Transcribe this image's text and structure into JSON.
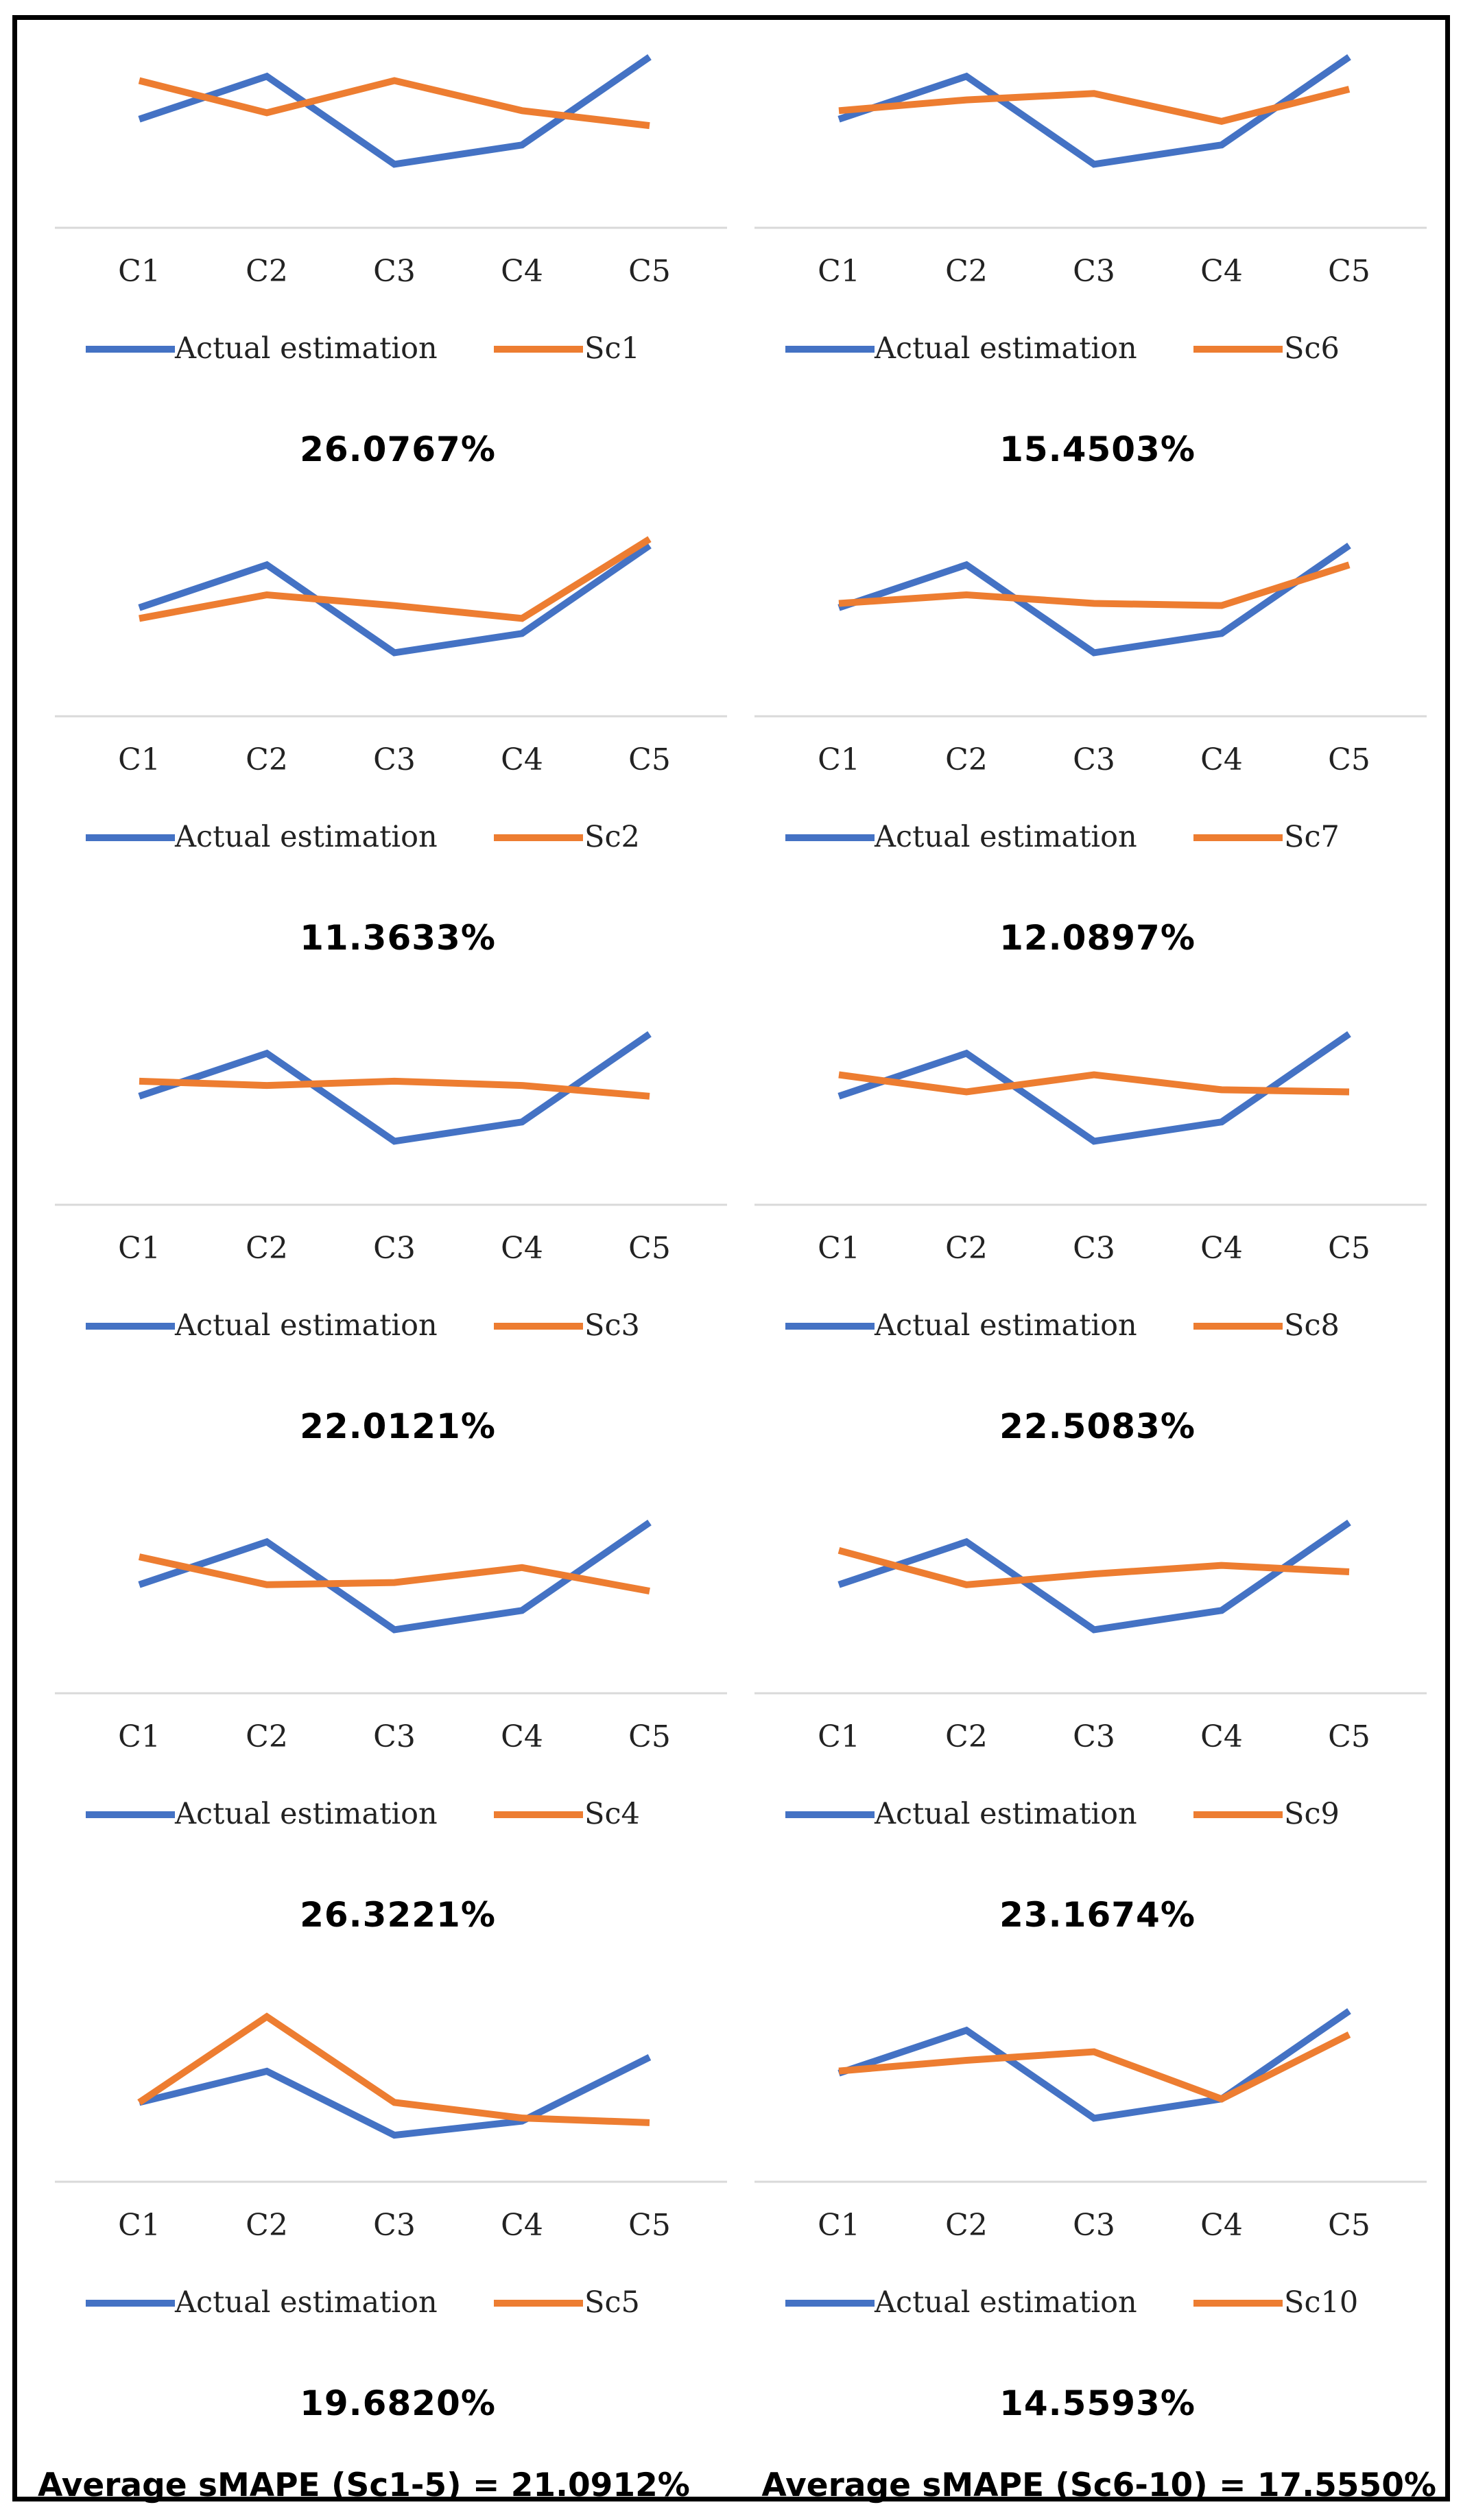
{
  "colors": {
    "actual": "#4472C4",
    "scenario": "#ED7D31",
    "gridline": "#D9D9D9",
    "frame": "#000000"
  },
  "legend_actual": "Actual estimation",
  "chart_data": [
    {
      "type": "line",
      "categories": [
        "C1",
        "C2",
        "C3",
        "C4",
        "C5"
      ],
      "series": [
        {
          "name": "Actual estimation",
          "values": [
            3.0,
            5.0,
            0.9,
            1.8,
            5.9
          ]
        },
        {
          "name": "Sc1",
          "values": [
            4.8,
            3.3,
            4.8,
            3.4,
            2.7
          ]
        }
      ],
      "score": "26.0767%",
      "ylim": [
        -2,
        6
      ]
    },
    {
      "type": "line",
      "categories": [
        "C1",
        "C2",
        "C3",
        "C4",
        "C5"
      ],
      "series": [
        {
          "name": "Actual estimation",
          "values": [
            3.0,
            5.0,
            0.9,
            1.8,
            5.9
          ]
        },
        {
          "name": "Sc6",
          "values": [
            3.4,
            3.9,
            4.2,
            2.9,
            4.4
          ]
        }
      ],
      "score": "15.4503%",
      "ylim": [
        -2,
        6
      ]
    },
    {
      "type": "line",
      "categories": [
        "C1",
        "C2",
        "C3",
        "C4",
        "C5"
      ],
      "series": [
        {
          "name": "Actual estimation",
          "values": [
            3.0,
            5.0,
            0.9,
            1.8,
            5.9
          ]
        },
        {
          "name": "Sc2",
          "values": [
            2.5,
            3.6,
            3.1,
            2.5,
            6.2
          ]
        }
      ],
      "score": "11.3633%",
      "ylim": [
        -2,
        6
      ]
    },
    {
      "type": "line",
      "categories": [
        "C1",
        "C2",
        "C3",
        "C4",
        "C5"
      ],
      "series": [
        {
          "name": "Actual estimation",
          "values": [
            3.0,
            5.0,
            0.9,
            1.8,
            5.9
          ]
        },
        {
          "name": "Sc7",
          "values": [
            3.2,
            3.6,
            3.2,
            3.1,
            5.0
          ]
        }
      ],
      "score": "12.0897%",
      "ylim": [
        -2,
        6
      ]
    },
    {
      "type": "line",
      "categories": [
        "C1",
        "C2",
        "C3",
        "C4",
        "C5"
      ],
      "series": [
        {
          "name": "Actual estimation",
          "values": [
            3.0,
            5.0,
            0.9,
            1.8,
            5.9
          ]
        },
        {
          "name": "Sc3",
          "values": [
            3.7,
            3.5,
            3.7,
            3.5,
            3.0
          ]
        }
      ],
      "score": "22.0121%",
      "ylim": [
        -2,
        6
      ]
    },
    {
      "type": "line",
      "categories": [
        "C1",
        "C2",
        "C3",
        "C4",
        "C5"
      ],
      "series": [
        {
          "name": "Actual estimation",
          "values": [
            3.0,
            5.0,
            0.9,
            1.8,
            5.9
          ]
        },
        {
          "name": "Sc8",
          "values": [
            4.0,
            3.2,
            4.0,
            3.3,
            3.2
          ]
        }
      ],
      "score": "22.5083%",
      "ylim": [
        -2,
        6
      ]
    },
    {
      "type": "line",
      "categories": [
        "C1",
        "C2",
        "C3",
        "C4",
        "C5"
      ],
      "series": [
        {
          "name": "Actual estimation",
          "values": [
            3.0,
            5.0,
            0.9,
            1.8,
            5.9
          ]
        },
        {
          "name": "Sc4",
          "values": [
            4.3,
            3.0,
            3.1,
            3.8,
            2.7
          ]
        }
      ],
      "score": "26.3221%",
      "ylim": [
        -2,
        6
      ]
    },
    {
      "type": "line",
      "categories": [
        "C1",
        "C2",
        "C3",
        "C4",
        "C5"
      ],
      "series": [
        {
          "name": "Actual estimation",
          "values": [
            3.0,
            5.0,
            0.9,
            1.8,
            5.9
          ]
        },
        {
          "name": "Sc9",
          "values": [
            4.6,
            3.0,
            3.5,
            3.9,
            3.6
          ]
        }
      ],
      "score": "23.1674%",
      "ylim": [
        -2,
        6
      ]
    },
    {
      "type": "line",
      "categories": [
        "C1",
        "C2",
        "C3",
        "C4",
        "C5"
      ],
      "series": [
        {
          "name": "Actual estimation",
          "values": [
            3.0,
            5.0,
            0.9,
            1.8,
            5.9
          ]
        },
        {
          "name": "Sc5",
          "values": [
            3.0,
            8.5,
            3.0,
            2.0,
            1.7
          ]
        }
      ],
      "score": "19.6820%",
      "ylim": [
        -2,
        9
      ]
    },
    {
      "type": "line",
      "categories": [
        "C1",
        "C2",
        "C3",
        "C4",
        "C5"
      ],
      "series": [
        {
          "name": "Actual estimation",
          "values": [
            3.0,
            5.0,
            0.9,
            1.8,
            5.9
          ]
        },
        {
          "name": "Sc10",
          "values": [
            3.1,
            3.6,
            4.0,
            1.8,
            4.8
          ]
        }
      ],
      "score": "14.5593%",
      "ylim": [
        -2,
        6
      ]
    }
  ],
  "footer": {
    "left": "Average sMAPE (Sc1-5) = 21.0912%",
    "right": "Average sMAPE (Sc6-10) = 17.5550%"
  }
}
